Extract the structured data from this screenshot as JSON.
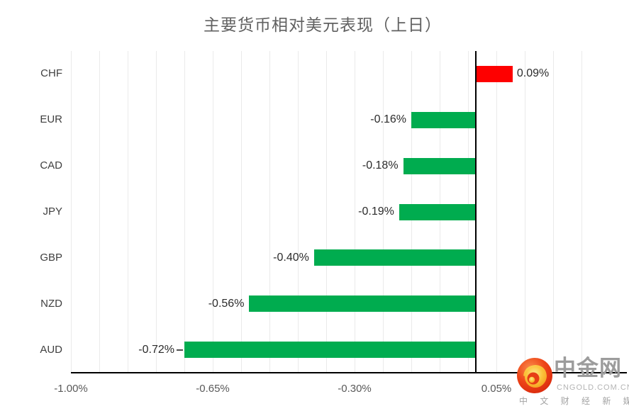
{
  "chart_data": {
    "type": "bar",
    "orientation": "horizontal",
    "title": "主要货币相对美元表现（上日）",
    "categories": [
      "CHF",
      "EUR",
      "CAD",
      "JPY",
      "GBP",
      "NZD",
      "AUD"
    ],
    "values": [
      0.09,
      -0.16,
      -0.18,
      -0.19,
      -0.4,
      -0.56,
      -0.72
    ],
    "value_labels": [
      "0.09%",
      "-0.16%",
      "-0.18%",
      "-0.19%",
      "-0.40%",
      "-0.56%",
      "-0.72%"
    ],
    "leader_dash_category": "AUD",
    "x_ticks": [
      {
        "value": -1.0,
        "label": "-1.00%"
      },
      {
        "value": -0.65,
        "label": "-0.65%"
      },
      {
        "value": -0.3,
        "label": "-0.30%"
      },
      {
        "value": 0.05,
        "label": "0.05%"
      }
    ],
    "xlim": [
      -1.0,
      0.26
    ],
    "gridline_step": 0.07,
    "grid": true,
    "legend": false,
    "colors": {
      "positive_bar": "#fe0000",
      "negative_bar": "#00ac4f",
      "gridline": "#eaeaea",
      "axis_line": "#000000"
    }
  },
  "watermark": {
    "name": "中金网",
    "domain": "CNGOLD.COM.CN",
    "tagline": "中 文 财 经 新 媒 体"
  }
}
